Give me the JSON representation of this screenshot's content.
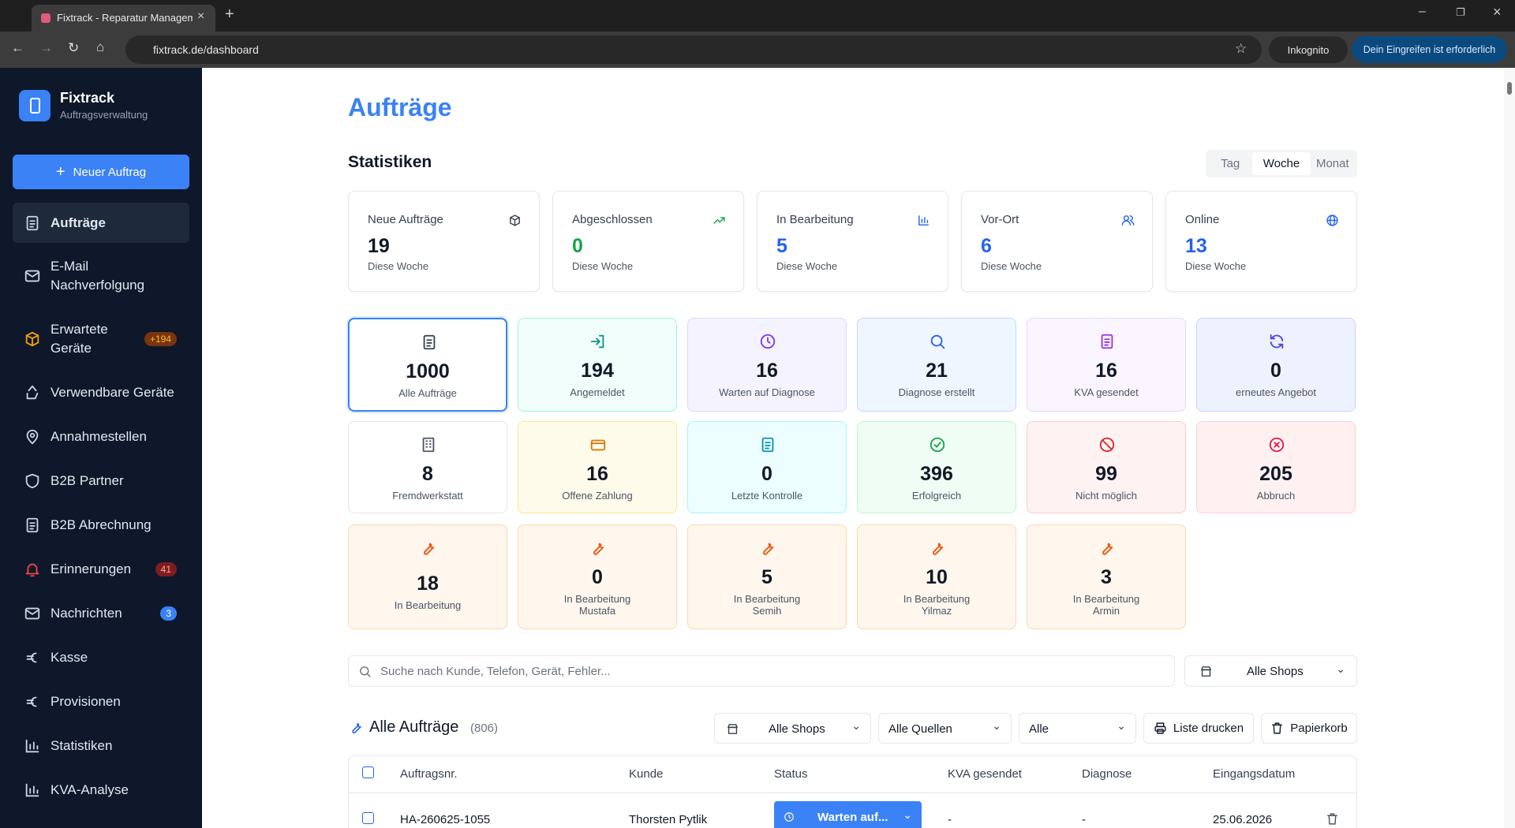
{
  "browser": {
    "tab_title": "Fixtrack - Reparatur Manageme",
    "url": "fixtrack.de/dashboard",
    "incognito": "Inkognito",
    "alert": "Dein Eingreifen ist erforderlich"
  },
  "sidebar": {
    "brand": "Fixtrack",
    "subtitle": "Auftragsverwaltung",
    "new_button": "Neuer Auftrag",
    "items": [
      {
        "label": "Aufträge"
      },
      {
        "label": "E-Mail Nachverfolgung"
      },
      {
        "label": "Erwartete Geräte",
        "badge": "+194"
      },
      {
        "label": "Verwendbare Geräte"
      },
      {
        "label": "Annahmestellen"
      },
      {
        "label": "B2B Partner"
      },
      {
        "label": "B2B Abrechnung"
      },
      {
        "label": "Erinnerungen",
        "badge": "41"
      },
      {
        "label": "Nachrichten",
        "badge": "3"
      },
      {
        "label": "Kasse"
      },
      {
        "label": "Provisionen"
      },
      {
        "label": "Statistiken"
      },
      {
        "label": "KVA-Analyse"
      }
    ]
  },
  "main": {
    "title": "Aufträge",
    "stats_title": "Statistiken",
    "periods": [
      "Tag",
      "Woche",
      "Monat"
    ],
    "stats": [
      {
        "label": "Neue Aufträge",
        "value": 19,
        "sub": "Diese Woche"
      },
      {
        "label": "Abgeschlossen",
        "value": 0,
        "sub": "Diese Woche"
      },
      {
        "label": "In Bearbeitung",
        "value": 5,
        "sub": "Diese Woche"
      },
      {
        "label": "Vor-Ort",
        "value": 6,
        "sub": "Diese Woche"
      },
      {
        "label": "Online",
        "value": 13,
        "sub": "Diese Woche"
      }
    ],
    "tiles": [
      {
        "value": 1000,
        "label": "Alle Aufträge"
      },
      {
        "value": 194,
        "label": "Angemeldet"
      },
      {
        "value": 16,
        "label": "Warten auf Diagnose"
      },
      {
        "value": 21,
        "label": "Diagnose erstellt"
      },
      {
        "value": 16,
        "label": "KVA gesendet"
      },
      {
        "value": 0,
        "label": "erneutes Angebot"
      },
      {
        "value": 8,
        "label": "Fremdwerkstatt"
      },
      {
        "value": 16,
        "label": "Offene Zahlung"
      },
      {
        "value": 0,
        "label": "Letzte Kontrolle"
      },
      {
        "value": 396,
        "label": "Erfolgreich"
      },
      {
        "value": 99,
        "label": "Nicht möglich"
      },
      {
        "value": 205,
        "label": "Abbruch"
      },
      {
        "value": 18,
        "label": "In Bearbeitung"
      },
      {
        "value": 0,
        "label": "In Bearbeitung",
        "sub": "Mustafa"
      },
      {
        "value": 5,
        "label": "In Bearbeitung",
        "sub": "Semih"
      },
      {
        "value": 10,
        "label": "In Bearbeitung",
        "sub": "Yilmaz"
      },
      {
        "value": 3,
        "label": "In Bearbeitung",
        "sub": "Armin"
      }
    ],
    "search_placeholder": "Suche nach Kunde, Telefon, Gerät, Fehler...",
    "shop_select": "Alle Shops",
    "list_title": "Alle Aufträge",
    "list_count": "(806)",
    "filters": [
      "Alle Shops",
      "Alle Quellen",
      "Alle"
    ],
    "buttons": [
      "Liste drucken",
      "Papierkorb"
    ],
    "table": {
      "columns": [
        "Auftragsnr.",
        "Kunde",
        "Status",
        "KVA gesendet",
        "Diagnose",
        "Eingangsdatum"
      ],
      "rows": [
        [
          "HA-260625-1055",
          "Thorsten Pytlik",
          "Warten auf...",
          "-",
          "-",
          "25.06.2026"
        ]
      ]
    }
  }
}
